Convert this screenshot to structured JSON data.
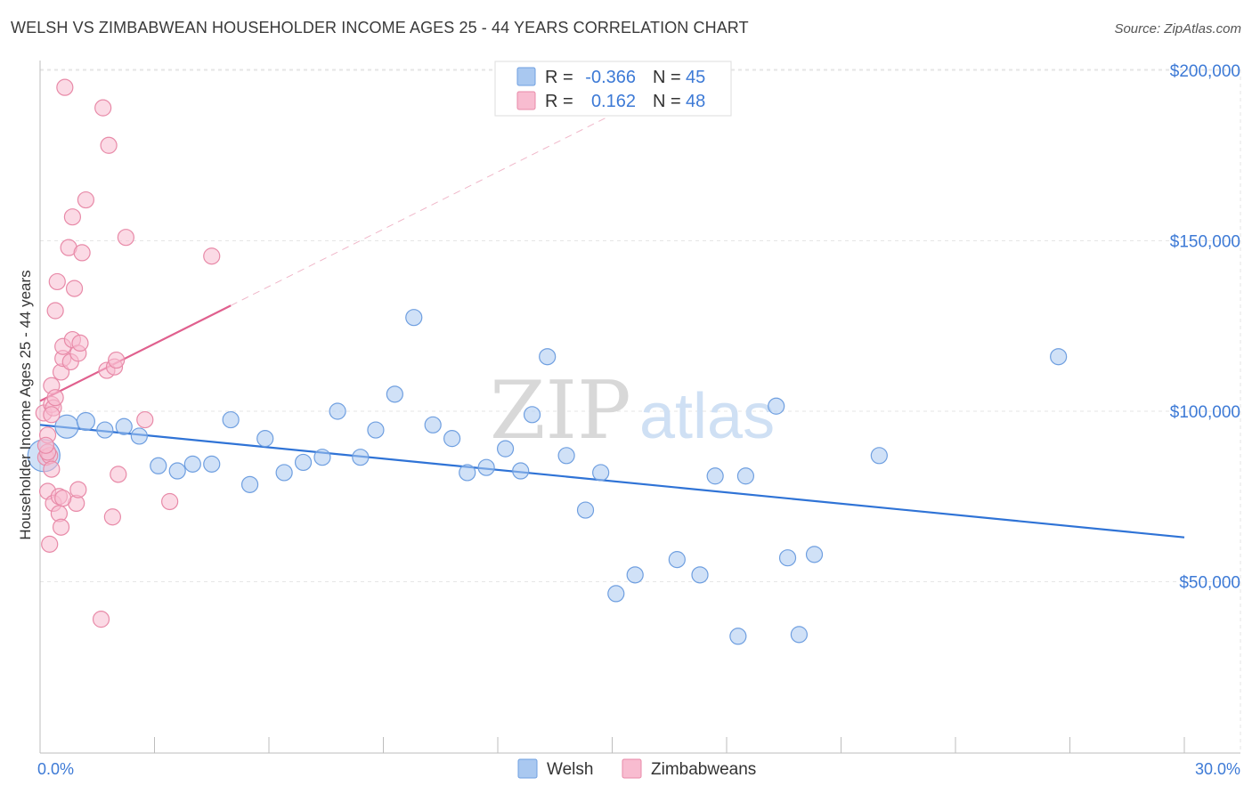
{
  "title": "WELSH VS ZIMBABWEAN HOUSEHOLDER INCOME AGES 25 - 44 YEARS CORRELATION CHART",
  "source": "Source: ZipAtlas.com",
  "watermark": {
    "zip": "ZIP",
    "atlas": "atlas"
  },
  "legend": {
    "rows": [
      {
        "r_label": "R =",
        "r_value": "-0.366",
        "n_label": "N =",
        "n_value": "45",
        "color": "#a9c8f0",
        "stroke": "#6f9fe0"
      },
      {
        "r_label": "R =",
        "r_value": "0.162",
        "n_label": "N =",
        "n_value": "48",
        "color": "#f8bcd0",
        "stroke": "#e88aa8"
      }
    ]
  },
  "bottom_legend": [
    {
      "label": "Welsh",
      "color": "#a9c8f0",
      "stroke": "#6f9fe0"
    },
    {
      "label": "Zimbabweans",
      "color": "#f8bcd0",
      "stroke": "#e88aa8"
    }
  ],
  "chart_data": {
    "type": "scatter",
    "title": "WELSH VS ZIMBABWEAN HOUSEHOLDER INCOME AGES 25 - 44 YEARS CORRELATION CHART",
    "xlabel": "",
    "ylabel": "Householder Income Ages 25 - 44 years",
    "xlim": [
      0,
      30
    ],
    "ylim": [
      0,
      210000
    ],
    "x_tick_labels": [
      {
        "value": 0,
        "label": "0.0%"
      },
      {
        "value": 30,
        "label": "30.0%"
      }
    ],
    "y_tick_labels": [
      {
        "value": 50000,
        "label": "$50,000"
      },
      {
        "value": 100000,
        "label": "$100,000"
      },
      {
        "value": 150000,
        "label": "$150,000"
      },
      {
        "value": 200000,
        "label": "$200,000"
      }
    ],
    "grid": true,
    "series": [
      {
        "name": "Welsh",
        "color": "#a9c8f0",
        "stroke": "#6f9fe0",
        "line_color": "#2f73d6",
        "trend": {
          "x0": 0,
          "y0": 96000,
          "x1": 30,
          "y1": 63000
        },
        "points": [
          [
            0.1,
            87000,
            18
          ],
          [
            0.7,
            95500,
            13
          ],
          [
            1.2,
            97000,
            10
          ],
          [
            1.7,
            94500,
            9
          ],
          [
            2.2,
            95500,
            9
          ],
          [
            2.6,
            92700,
            9
          ],
          [
            3.1,
            84000,
            9
          ],
          [
            3.6,
            82500,
            9
          ],
          [
            4.0,
            84500,
            9
          ],
          [
            4.5,
            84500,
            9
          ],
          [
            5.0,
            97500,
            9
          ],
          [
            5.5,
            78500,
            9
          ],
          [
            5.9,
            92000,
            9
          ],
          [
            6.4,
            82000,
            9
          ],
          [
            6.9,
            85000,
            9
          ],
          [
            7.4,
            86500,
            9
          ],
          [
            7.8,
            100000,
            9
          ],
          [
            8.4,
            86500,
            9
          ],
          [
            8.8,
            94500,
            9
          ],
          [
            9.3,
            105000,
            9
          ],
          [
            9.8,
            127500,
            9
          ],
          [
            10.3,
            96000,
            9
          ],
          [
            10.8,
            92000,
            9
          ],
          [
            11.2,
            82000,
            9
          ],
          [
            11.7,
            83500,
            9
          ],
          [
            12.2,
            89000,
            9
          ],
          [
            12.6,
            82500,
            9
          ],
          [
            12.9,
            99000,
            9
          ],
          [
            13.3,
            116000,
            9
          ],
          [
            13.8,
            87000,
            9
          ],
          [
            14.3,
            71000,
            9
          ],
          [
            14.7,
            82000,
            9
          ],
          [
            15.1,
            46500,
            9
          ],
          [
            15.6,
            52000,
            9
          ],
          [
            16.7,
            56500,
            9
          ],
          [
            17.3,
            52000,
            9
          ],
          [
            17.7,
            81000,
            9
          ],
          [
            18.3,
            34000,
            9
          ],
          [
            18.5,
            81000,
            9
          ],
          [
            19.3,
            101500,
            9
          ],
          [
            19.6,
            57000,
            9
          ],
          [
            19.9,
            34500,
            9
          ],
          [
            20.3,
            58000,
            9
          ],
          [
            22.0,
            87000,
            9
          ],
          [
            26.7,
            116000,
            9
          ]
        ]
      },
      {
        "name": "Zimbabweans",
        "color": "#f8bcd0",
        "stroke": "#e88aa8",
        "line_color": "#e0608e",
        "trend": {
          "x0": 0,
          "y0": 103000,
          "x1": 5.0,
          "y1": 131000
        },
        "trend_dashed_to": {
          "x": 30,
          "y": 271000
        },
        "points": [
          [
            0.1,
            99500,
            9
          ],
          [
            0.2,
            93000,
            9
          ],
          [
            0.15,
            86500,
            9
          ],
          [
            0.25,
            87000,
            9
          ],
          [
            0.3,
            102000,
            9
          ],
          [
            0.2,
            76500,
            9
          ],
          [
            0.25,
            61000,
            9
          ],
          [
            0.3,
            107500,
            9
          ],
          [
            0.35,
            101000,
            9
          ],
          [
            0.4,
            129500,
            9
          ],
          [
            0.45,
            138000,
            9
          ],
          [
            0.35,
            73000,
            9
          ],
          [
            0.5,
            75000,
            9
          ],
          [
            0.5,
            70000,
            9
          ],
          [
            0.55,
            66000,
            9
          ],
          [
            0.55,
            111500,
            9
          ],
          [
            0.6,
            115500,
            9
          ],
          [
            0.6,
            119000,
            9
          ],
          [
            0.65,
            195000,
            9
          ],
          [
            0.75,
            148000,
            9
          ],
          [
            0.8,
            114500,
            9
          ],
          [
            0.85,
            121000,
            9
          ],
          [
            0.85,
            157000,
            9
          ],
          [
            0.9,
            136000,
            9
          ],
          [
            0.95,
            73000,
            9
          ],
          [
            1.0,
            77000,
            9
          ],
          [
            1.0,
            117000,
            9
          ],
          [
            1.05,
            120000,
            9
          ],
          [
            1.1,
            146500,
            9
          ],
          [
            1.2,
            162000,
            9
          ],
          [
            1.6,
            39000,
            9
          ],
          [
            1.65,
            189000,
            9
          ],
          [
            1.75,
            112000,
            9
          ],
          [
            1.8,
            178000,
            9
          ],
          [
            1.9,
            69000,
            9
          ],
          [
            1.95,
            113000,
            9
          ],
          [
            2.0,
            115000,
            9
          ],
          [
            2.05,
            81500,
            9
          ],
          [
            2.25,
            151000,
            9
          ],
          [
            2.75,
            97500,
            9
          ],
          [
            3.4,
            73500,
            9
          ],
          [
            4.5,
            145500,
            9
          ],
          [
            0.2,
            88000,
            9
          ],
          [
            0.4,
            104000,
            9
          ],
          [
            0.3,
            99000,
            9
          ],
          [
            0.6,
            74500,
            9
          ],
          [
            0.15,
            90000,
            9
          ],
          [
            0.3,
            83000,
            9
          ]
        ]
      }
    ]
  }
}
